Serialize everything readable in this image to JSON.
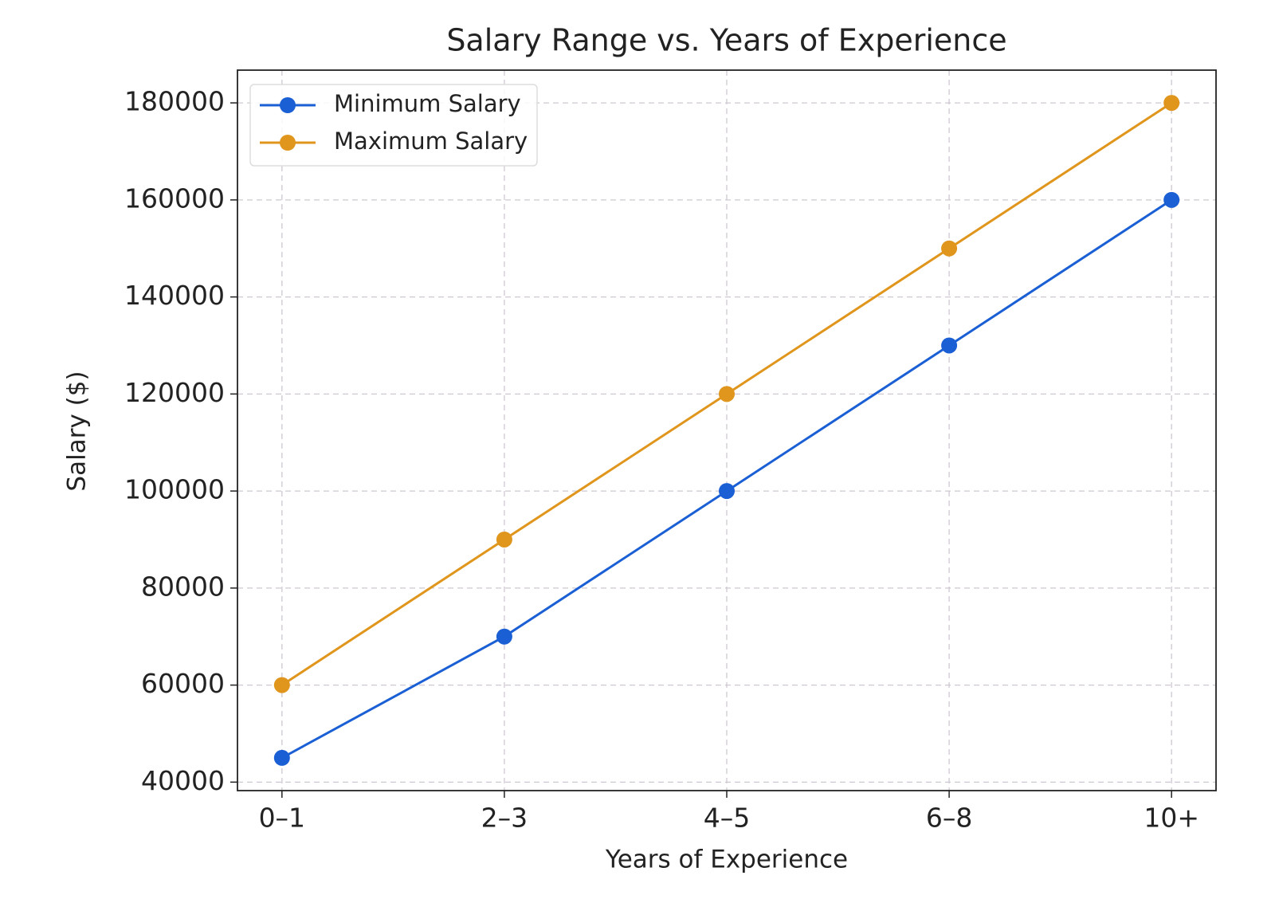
{
  "chart_data": {
    "type": "line",
    "title": "Salary Range vs. Years of Experience",
    "xlabel": "Years of Experience",
    "ylabel": "Salary ($)",
    "categories": [
      "0–1",
      "2–3",
      "4–5",
      "6–8",
      "10+"
    ],
    "series": [
      {
        "name": "Minimum Salary",
        "color": "#1a5fd4",
        "values": [
          45000,
          70000,
          100000,
          130000,
          160000
        ]
      },
      {
        "name": "Maximum Salary",
        "color": "#e0951c",
        "values": [
          60000,
          90000,
          120000,
          150000,
          180000
        ]
      }
    ],
    "ylim": [
      38250,
      186750
    ],
    "yticks": [
      40000,
      60000,
      80000,
      100000,
      120000,
      140000,
      160000,
      180000
    ],
    "grid": true,
    "legend": "upper left"
  }
}
